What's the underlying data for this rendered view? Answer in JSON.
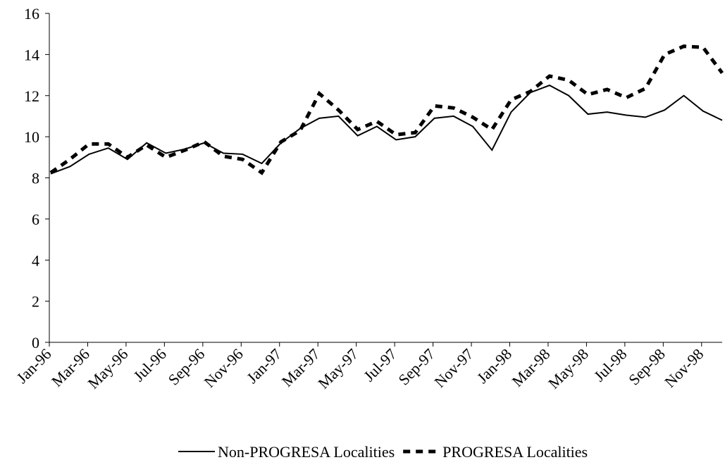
{
  "chart_data": {
    "type": "line",
    "categories": [
      "Jan-96",
      null,
      "Mar-96",
      null,
      "May-96",
      null,
      "Jul-96",
      null,
      "Sep-96",
      null,
      "Nov-96",
      null,
      "Jan-97",
      null,
      "Mar-97",
      null,
      "May-97",
      null,
      "Jul-97",
      null,
      "Sep-97",
      null,
      "Nov-97",
      null,
      "Jan-98",
      null,
      "Mar-98",
      null,
      "May-98",
      null,
      "Jul-98",
      null,
      "Sep-98",
      null,
      "Nov-98",
      null
    ],
    "series": [
      {
        "name": "Non-PROGRESA Localities",
        "color": "#000000",
        "dash": false,
        "values": [
          8.2,
          8.55,
          9.15,
          9.45,
          8.9,
          9.7,
          9.2,
          9.4,
          9.7,
          9.2,
          9.15,
          8.7,
          9.7,
          10.4,
          10.9,
          11.0,
          10.05,
          10.5,
          9.85,
          10.0,
          10.9,
          11.0,
          10.5,
          9.35,
          11.2,
          12.15,
          12.5,
          12.0,
          11.1,
          11.2,
          11.05,
          10.95,
          11.3,
          12.0,
          11.25,
          10.8
        ]
      },
      {
        "name": "PROGRESA Localities",
        "color": "#000000",
        "dash": true,
        "values": [
          8.25,
          8.9,
          9.65,
          9.65,
          9.0,
          9.6,
          9.0,
          9.35,
          9.75,
          9.05,
          8.9,
          8.25,
          9.75,
          10.3,
          12.1,
          11.3,
          10.35,
          10.75,
          10.1,
          10.2,
          11.5,
          11.4,
          10.95,
          10.35,
          11.8,
          12.2,
          12.95,
          12.75,
          12.05,
          12.3,
          11.9,
          12.35,
          14.0,
          14.4,
          14.35,
          13.1
        ]
      }
    ],
    "ylim": [
      0,
      16
    ],
    "yticks": [
      0,
      2,
      4,
      6,
      8,
      10,
      12,
      14,
      16
    ],
    "grid": false,
    "legend": "bottom"
  }
}
